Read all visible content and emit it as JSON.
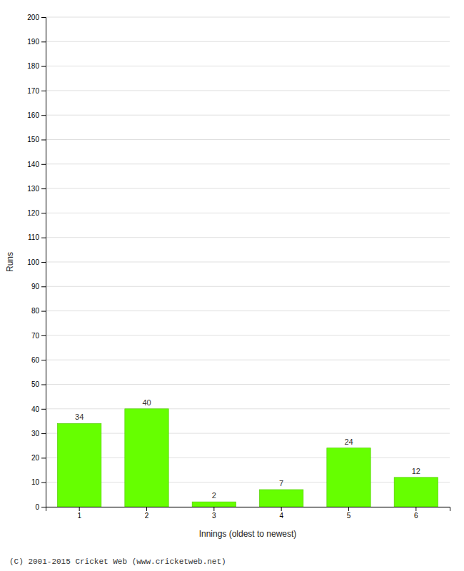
{
  "chart_data": {
    "type": "bar",
    "categories": [
      "1",
      "2",
      "3",
      "4",
      "5",
      "6"
    ],
    "values": [
      34,
      40,
      2,
      7,
      24,
      12
    ],
    "color": "#66ff00",
    "xlabel": "Innings (oldest to newest)",
    "ylabel": "Runs",
    "ylim": [
      0,
      200
    ],
    "yticks": [
      0,
      10,
      20,
      30,
      40,
      50,
      60,
      70,
      80,
      90,
      100,
      110,
      120,
      130,
      140,
      150,
      160,
      170,
      180,
      190,
      200
    ],
    "grid": true,
    "data_labels": true,
    "annotations": [
      "(C) 2001-2015 Cricket Web (www.cricketweb.net)"
    ]
  }
}
